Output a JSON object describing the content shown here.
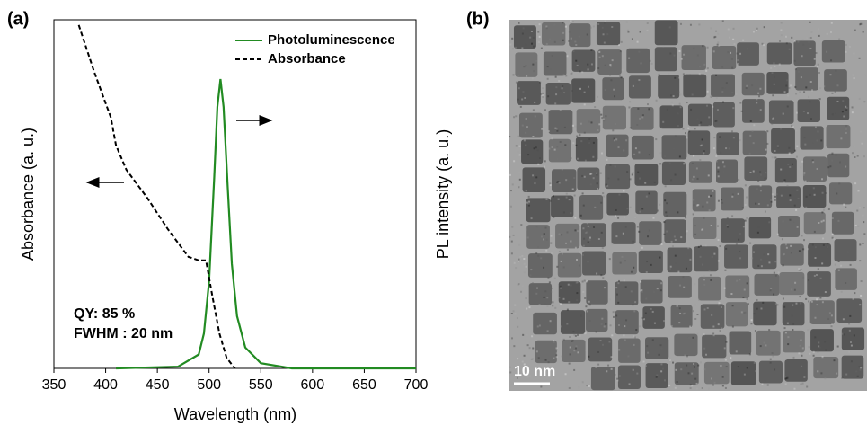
{
  "chart_data": {
    "type": "line",
    "panel_label": "(a)",
    "xlabel": "Wavelength (nm)",
    "ylabel": "Absorbance (a. u.)",
    "y2label": "PL intensity (a. u.)",
    "xlim": [
      350,
      700
    ],
    "xticks": [
      350,
      400,
      450,
      500,
      550,
      600,
      650,
      700
    ],
    "ylim": [
      0,
      1
    ],
    "y2lim": [
      0,
      1
    ],
    "legend": "upper right",
    "annotations": [
      "QY: 85 %",
      "FWHM : 20 nm"
    ],
    "series": [
      {
        "name": "Photoluminescence",
        "color": "#228b22",
        "dash": false,
        "axis": "y2",
        "x": [
          410,
          470,
          490,
          495,
          500,
          505,
          508,
          511,
          514,
          518,
          522,
          527,
          535,
          550,
          580,
          700
        ],
        "values": [
          0,
          0.005,
          0.04,
          0.1,
          0.25,
          0.55,
          0.75,
          0.83,
          0.75,
          0.52,
          0.3,
          0.15,
          0.06,
          0.015,
          0,
          0
        ]
      },
      {
        "name": "Absorbance",
        "color": "#000000",
        "dash": true,
        "x": [
          374,
          389,
          405,
          410,
          420,
          440,
          460,
          470,
          480,
          490,
          497,
          503,
          510,
          517,
          525
        ],
        "values": [
          0.985,
          0.85,
          0.72,
          0.64,
          0.57,
          0.49,
          0.4,
          0.36,
          0.32,
          0.31,
          0.31,
          0.21,
          0.1,
          0.03,
          0
        ]
      }
    ]
  },
  "image": {
    "panel_label": "(b)",
    "scale_bar": "10 nm"
  }
}
